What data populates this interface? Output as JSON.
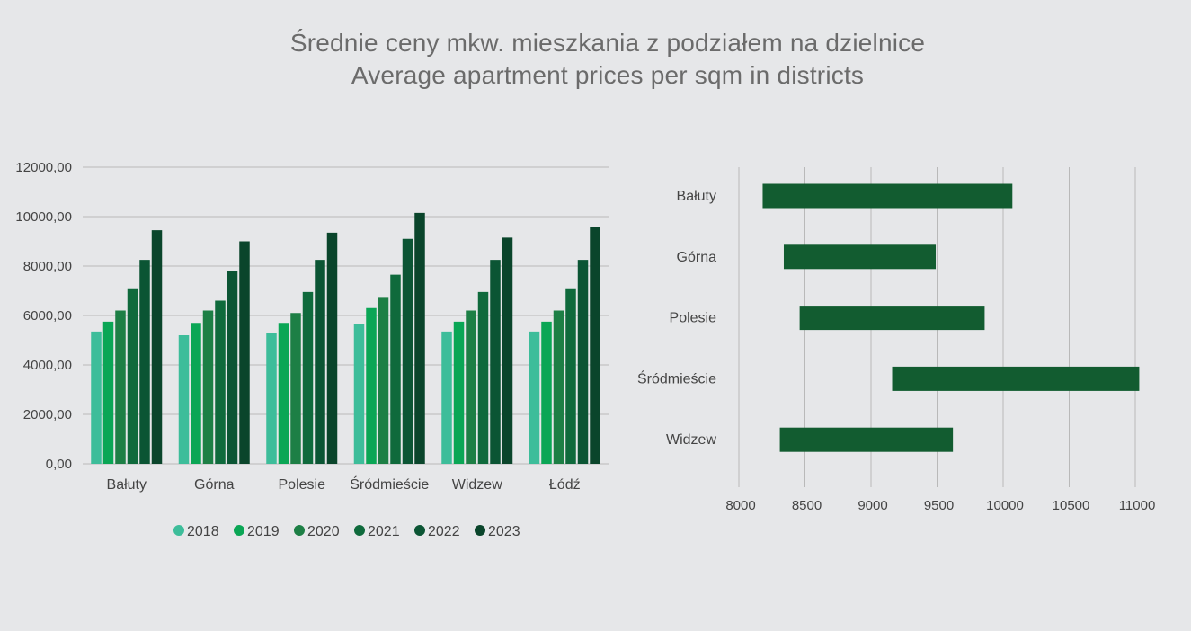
{
  "title": {
    "line1": "Średnie ceny mkw. mieszkania z podziałem na dzielnice",
    "line2": "Average apartment prices per sqm in districts"
  },
  "colors": {
    "2018": "#3dbd9a",
    "2019": "#0aa655",
    "2020": "#1d7f45",
    "2021": "#0f6a3c",
    "2022": "#0b5534",
    "2023": "#0a452b",
    "range_bar": "#125c30",
    "grid": "#b9b9b9"
  },
  "chart_data": [
    {
      "type": "bar",
      "categories": [
        "Bałuty",
        "Górna",
        "Polesie",
        "Śródmieście",
        "Widzew",
        "Łódź"
      ],
      "ylim": [
        0,
        12000
      ],
      "yticks": [
        "0,00",
        "2000,00",
        "4000,00",
        "6000,00",
        "8000,00",
        "10000,00",
        "12000,00"
      ],
      "grid": true,
      "legend": "bottom",
      "series": [
        {
          "name": "2018",
          "values": [
            5350,
            5200,
            5280,
            5650,
            5350,
            5350
          ]
        },
        {
          "name": "2019",
          "values": [
            5750,
            5700,
            5700,
            6300,
            5750,
            5750
          ]
        },
        {
          "name": "2020",
          "values": [
            6200,
            6200,
            6100,
            6750,
            6200,
            6200
          ]
        },
        {
          "name": "2021",
          "values": [
            7100,
            6600,
            6950,
            7650,
            6950,
            7100
          ]
        },
        {
          "name": "2022",
          "values": [
            8250,
            7800,
            8250,
            9100,
            8250,
            8250
          ]
        },
        {
          "name": "2023",
          "values": [
            9450,
            9000,
            9350,
            10150,
            9150,
            9600
          ]
        }
      ]
    },
    {
      "type": "bar",
      "orientation": "horizontal-range",
      "categories": [
        "Bałuty",
        "Górna",
        "Polesie",
        "Śródmieście",
        "Widzew"
      ],
      "xlim": [
        8000,
        11000
      ],
      "xticks": [
        "8000",
        "8500",
        "9000",
        "9500",
        "10000",
        "10500",
        "11000"
      ],
      "grid": true,
      "ranges": [
        {
          "start": 8180,
          "end": 10070
        },
        {
          "start": 8340,
          "end": 9490
        },
        {
          "start": 8460,
          "end": 9860
        },
        {
          "start": 9160,
          "end": 11030
        },
        {
          "start": 8310,
          "end": 9620
        }
      ]
    }
  ]
}
